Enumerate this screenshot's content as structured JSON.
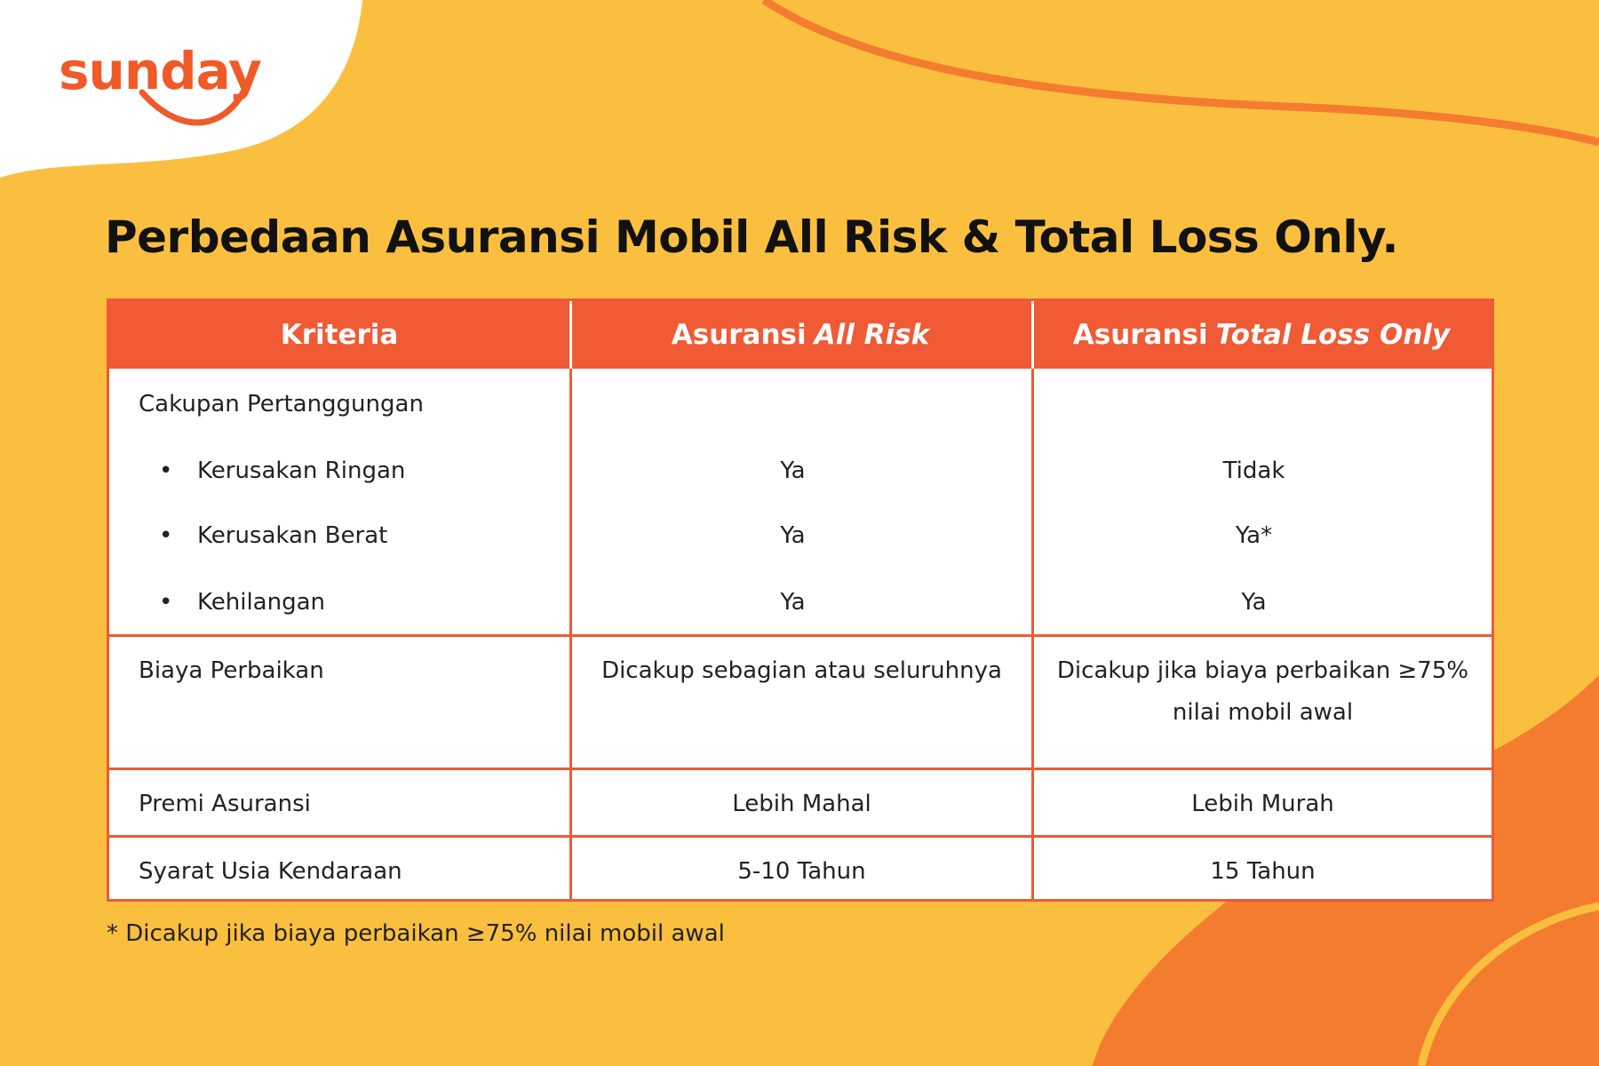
{
  "logo": "sunday",
  "title": "Perbedaan Asuransi Mobil All Risk & Total Loss Only.",
  "table": {
    "headers": [
      "Kriteria",
      {
        "prefix": "Asuransi",
        "emphasis": "All Risk"
      },
      {
        "prefix": "Asuransi",
        "emphasis": "Total Loss Only"
      }
    ],
    "rows": [
      {
        "criterion": "Cakupan Pertanggungan",
        "items": [
          {
            "label": "Kerusakan Ringan",
            "all_risk": "Ya",
            "total_loss": "Tidak"
          },
          {
            "label": "Kerusakan Berat",
            "all_risk": "Ya",
            "total_loss": "Ya*"
          },
          {
            "label": "Kehilangan",
            "all_risk": "Ya",
            "total_loss": "Ya"
          }
        ]
      },
      {
        "criterion": "Biaya Perbaikan",
        "all_risk": "Dicakup sebagian atau seluruhnya",
        "total_loss": [
          "Dicakup jika biaya perbaikan ≥75%",
          "nilai mobil awal"
        ]
      },
      {
        "criterion": "Premi Asuransi",
        "all_risk": "Lebih Mahal",
        "total_loss": "Lebih Murah"
      },
      {
        "criterion": "Syarat Usia Kendaraan",
        "all_risk": "5-10 Tahun",
        "total_loss": "15 Tahun"
      }
    ]
  },
  "footnote": {
    "marker": "*",
    "text": "Dicakup jika biaya perbaikan ≥75% nilai mobil awal"
  }
}
